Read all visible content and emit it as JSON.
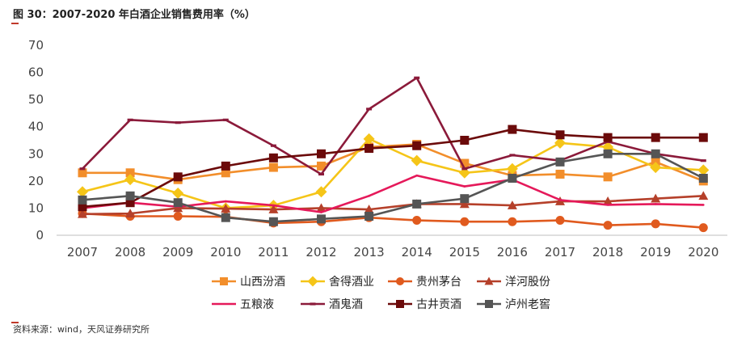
{
  "header": {
    "title": "图 30：2007-2020 年白酒企业销售费用率（%）"
  },
  "footer": {
    "source": "资料来源：wind，天风证券研究所"
  },
  "chart_data": {
    "type": "line",
    "title": "图 30：2007-2020 年白酒企业销售费用率（%）",
    "xlabel": "",
    "ylabel": "",
    "ylim": [
      0,
      70
    ],
    "yticks": [
      0,
      10,
      20,
      30,
      40,
      50,
      60,
      70
    ],
    "categories": [
      "2007",
      "2008",
      "2009",
      "2010",
      "2011",
      "2012",
      "2013",
      "2014",
      "2015",
      "2016",
      "2017",
      "2018",
      "2019",
      "2020"
    ],
    "legend_position": "bottom",
    "series": [
      {
        "name": "山西汾酒",
        "color": "#f28e2b",
        "marker": "square",
        "values": [
          23,
          23,
          20.5,
          23,
          25,
          25.5,
          32.5,
          33.5,
          26.5,
          22,
          22.5,
          21.5,
          27,
          20
        ]
      },
      {
        "name": "舍得酒业",
        "color": "#f5c518",
        "marker": "diamond",
        "values": [
          16,
          20.5,
          15.5,
          10,
          11,
          16,
          35.5,
          27.5,
          23,
          24.5,
          34,
          32.5,
          25,
          24
        ]
      },
      {
        "name": "贵州茅台",
        "color": "#e05a1e",
        "marker": "circle",
        "values": [
          8,
          7,
          7,
          6.8,
          4.5,
          5,
          6.5,
          5.5,
          5,
          5,
          5.5,
          3.7,
          4.2,
          2.8
        ]
      },
      {
        "name": "洋河股份",
        "color": "#b5402a",
        "marker": "triangle",
        "values": [
          7.8,
          8,
          10,
          9.8,
          9.5,
          10,
          9.5,
          11.5,
          11.5,
          11,
          12.5,
          12.5,
          13.5,
          14.5
        ]
      },
      {
        "name": "五粮液",
        "color": "#e5195a",
        "marker": "none",
        "values": [
          10,
          12,
          10.5,
          12.5,
          11,
          8.5,
          14.5,
          22,
          18,
          20.5,
          13,
          11.2,
          11.5,
          11.2
        ]
      },
      {
        "name": "酒鬼酒",
        "color": "#8b1a3a",
        "marker": "dash",
        "values": [
          24.5,
          42.5,
          41.5,
          42.5,
          33,
          22.5,
          46.5,
          58,
          24.5,
          29.5,
          27.5,
          34.5,
          30,
          27.5
        ]
      },
      {
        "name": "古井贡酒",
        "color": "#6b0a0a",
        "marker": "square",
        "values": [
          10.5,
          12,
          21.5,
          25.5,
          28.5,
          30,
          32,
          33,
          35,
          39,
          37,
          36,
          36,
          36
        ]
      },
      {
        "name": "泸州老窖",
        "color": "#555555",
        "marker": "square",
        "values": [
          13,
          14.5,
          12,
          6.5,
          5,
          6,
          7,
          11.5,
          13.5,
          21,
          27,
          30,
          30,
          21
        ]
      }
    ]
  }
}
